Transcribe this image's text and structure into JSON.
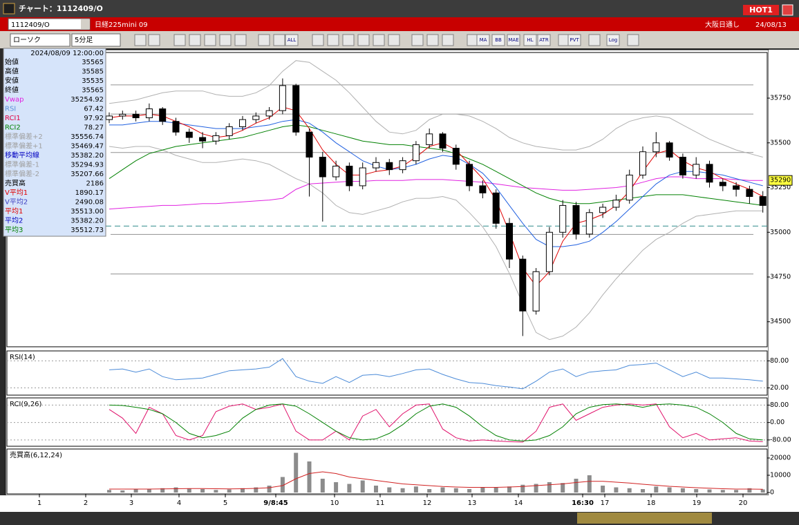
{
  "window": {
    "title": "チャート：1112409/O",
    "badge": "HOT1"
  },
  "header": {
    "symbol": "1112409/O",
    "name": "日経225mini 09",
    "session": "大阪日通し",
    "date": "24/08/13"
  },
  "toolbar": {
    "chart_style": "ローソク",
    "interval": "5分足",
    "buttons": [
      "ALL",
      "MA",
      "BB",
      "MAE",
      "HL",
      "ATR",
      "PVT",
      "Log"
    ]
  },
  "info_panel": {
    "timestamp": "2024/08/09 12:00:00",
    "rows": [
      {
        "label": "始値",
        "value": "35565",
        "color": "#000000"
      },
      {
        "label": "高値",
        "value": "35585",
        "color": "#000000"
      },
      {
        "label": "安値",
        "value": "35535",
        "color": "#000000"
      },
      {
        "label": "終値",
        "value": "35565",
        "color": "#000000"
      },
      {
        "label": "Vwap",
        "value": "35254.92",
        "color": "#e020e0"
      },
      {
        "label": "RSI",
        "value": "67.42",
        "color": "#5a90d8"
      },
      {
        "label": "RCI1",
        "value": "97.92",
        "color": "#e00040"
      },
      {
        "label": "RCI2",
        "value": "78.27",
        "color": "#008000"
      },
      {
        "label": "標準偏差+2",
        "value": "35556.74",
        "color": "#a0a0a0"
      },
      {
        "label": "標準偏差+1",
        "value": "35469.47",
        "color": "#a0a0a0"
      },
      {
        "label": "移動平均線",
        "value": "35382.20",
        "color": "#0000c0"
      },
      {
        "label": "標準偏差-1",
        "value": "35294.93",
        "color": "#a0a0a0"
      },
      {
        "label": "標準偏差-2",
        "value": "35207.66",
        "color": "#a0a0a0"
      },
      {
        "label": "売買高",
        "value": "2186",
        "color": "#000000"
      },
      {
        "label": "V平均1",
        "value": "1890.17",
        "color": "#e00000"
      },
      {
        "label": "V平均2",
        "value": "2490.08",
        "color": "#4040c0"
      },
      {
        "label": "平均1",
        "value": "35513.00",
        "color": "#e00000"
      },
      {
        "label": "平均2",
        "value": "35382.20",
        "color": "#0000c0"
      },
      {
        "label": "平均3",
        "value": "35512.73",
        "color": "#008000"
      }
    ]
  },
  "time_axis": {
    "labels": [
      "1",
      "2",
      "3",
      "4",
      "5",
      "9/8:45",
      "10",
      "11",
      "12",
      "13",
      "14",
      "16:30",
      "17",
      "18",
      "19",
      "20"
    ]
  },
  "chart_data": [
    {
      "type": "candlestick",
      "ylim": [
        34360,
        36005
      ],
      "yticks": [
        34500,
        34750,
        35000,
        35250,
        35500,
        35750
      ],
      "up_color": "#ffffff",
      "down_color": "#000000",
      "hlines": [
        35824,
        35661,
        35446,
        34988,
        34767
      ],
      "reference_line": 35035,
      "last_price": 35290,
      "open": [
        35630,
        35650,
        35660,
        35640,
        35690,
        35620,
        35560,
        35530,
        35510,
        35540,
        35590,
        35630,
        35650,
        35680,
        35820,
        35560,
        35420,
        35310,
        35370,
        35260,
        35360,
        35390,
        35350,
        35400,
        35490,
        35550,
        35470,
        35380,
        35260,
        35220,
        35050,
        34850,
        34560,
        34780,
        35000,
        35150,
        34990,
        35110,
        35140,
        35180,
        35320,
        35450,
        35500,
        35420,
        35320,
        35380,
        35280,
        35260,
        35240,
        35200
      ],
      "high": [
        35670,
        35680,
        35680,
        35720,
        35700,
        35640,
        35580,
        35560,
        35560,
        35610,
        35650,
        35670,
        35700,
        35860,
        35830,
        35580,
        35450,
        35400,
        35390,
        35390,
        35420,
        35410,
        35420,
        35510,
        35580,
        35560,
        35490,
        35400,
        35290,
        35240,
        35080,
        34870,
        34800,
        35030,
        35180,
        35170,
        35130,
        35160,
        35210,
        35350,
        35480,
        35560,
        35510,
        35440,
        35420,
        35400,
        35300,
        35280,
        35260,
        35230
      ],
      "low": [
        35610,
        35630,
        35620,
        35620,
        35600,
        35540,
        35500,
        35470,
        35490,
        35520,
        35570,
        35610,
        35630,
        35660,
        35540,
        35200,
        35060,
        35290,
        35230,
        35240,
        35340,
        35320,
        35330,
        35380,
        35470,
        35450,
        35350,
        35230,
        35190,
        35020,
        34800,
        34420,
        34540,
        34760,
        34970,
        34960,
        34970,
        35080,
        35120,
        35160,
        35300,
        35420,
        35400,
        35300,
        35300,
        35250,
        35230,
        35200,
        35160,
        35110
      ],
      "close": [
        35650,
        35660,
        35640,
        35690,
        35620,
        35560,
        35530,
        35510,
        35540,
        35590,
        35630,
        35650,
        35680,
        35820,
        35560,
        35420,
        35310,
        35370,
        35260,
        35360,
        35390,
        35350,
        35400,
        35490,
        35550,
        35470,
        35380,
        35260,
        35220,
        35050,
        34850,
        34560,
        34780,
        35000,
        35150,
        34990,
        35110,
        35140,
        35180,
        35320,
        35450,
        35500,
        35420,
        35320,
        35380,
        35280,
        35260,
        35240,
        35200,
        35150
      ],
      "series": [
        {
          "color": "#b0b0b0",
          "values": [
            35720,
            35730,
            35740,
            35760,
            35780,
            35790,
            35790,
            35790,
            35770,
            35760,
            35760,
            35780,
            35820,
            35900,
            35960,
            35950,
            35900,
            35850,
            35780,
            35700,
            35620,
            35560,
            35550,
            35570,
            35630,
            35660,
            35660,
            35650,
            35620,
            35580,
            35530,
            35500,
            35480,
            35470,
            35460,
            35460,
            35480,
            35520,
            35580,
            35620,
            35640,
            35650,
            35640,
            35600,
            35560,
            35520,
            35490,
            35460,
            35440,
            35420
          ]
        },
        {
          "color": "#b0b0b0",
          "values": [
            35480,
            35470,
            35480,
            35480,
            35460,
            35430,
            35410,
            35390,
            35390,
            35400,
            35410,
            35400,
            35380,
            35340,
            35300,
            35270,
            35220,
            35150,
            35110,
            35100,
            35120,
            35140,
            35170,
            35190,
            35190,
            35200,
            35180,
            35110,
            35030,
            34920,
            34770,
            34600,
            34440,
            34400,
            34420,
            34470,
            34550,
            34650,
            34740,
            34820,
            34900,
            34960,
            35000,
            35050,
            35090,
            35100,
            35110,
            35120,
            35120,
            35120
          ]
        },
        {
          "color": "#e020e0",
          "values": [
            35130,
            35135,
            35140,
            35145,
            35150,
            35150,
            35155,
            35160,
            35160,
            35165,
            35170,
            35175,
            35180,
            35190,
            35240,
            35270,
            35275,
            35280,
            35285,
            35285,
            35290,
            35290,
            35290,
            35295,
            35295,
            35295,
            35290,
            35285,
            35280,
            35270,
            35260,
            35250,
            35245,
            35240,
            35235,
            35235,
            35240,
            35245,
            35250,
            35260,
            35280,
            35300,
            35310,
            35310,
            35300,
            35300,
            35300,
            35295,
            35290,
            35290
          ]
        },
        {
          "color": "#008000",
          "values": [
            35300,
            35350,
            35400,
            35440,
            35460,
            35480,
            35490,
            35500,
            35510,
            35520,
            35530,
            35550,
            35570,
            35590,
            35600,
            35590,
            35570,
            35550,
            35530,
            35510,
            35500,
            35490,
            35490,
            35480,
            35470,
            35460,
            35440,
            35410,
            35380,
            35340,
            35300,
            35260,
            35220,
            35190,
            35170,
            35160,
            35160,
            35170,
            35180,
            35190,
            35200,
            35210,
            35210,
            35210,
            35200,
            35190,
            35180,
            35170,
            35160,
            35150
          ]
        },
        {
          "color": "#2060e0",
          "values": [
            35600,
            35600,
            35610,
            35620,
            35620,
            35610,
            35600,
            35590,
            35580,
            35580,
            35580,
            35590,
            35600,
            35620,
            35630,
            35610,
            35560,
            35500,
            35450,
            35400,
            35370,
            35350,
            35360,
            35380,
            35410,
            35430,
            35420,
            35380,
            35330,
            35250,
            35150,
            35050,
            34960,
            34920,
            34920,
            34930,
            34950,
            35000,
            35060,
            35130,
            35200,
            35270,
            35320,
            35340,
            35340,
            35330,
            35320,
            35300,
            35280,
            35260
          ]
        },
        {
          "color": "#e00000",
          "values": [
            35640,
            35650,
            35650,
            35660,
            35650,
            35620,
            35590,
            35550,
            35530,
            35540,
            35570,
            35610,
            35640,
            35700,
            35680,
            35580,
            35460,
            35380,
            35320,
            35320,
            35340,
            35350,
            35370,
            35420,
            35480,
            35500,
            35460,
            35380,
            35300,
            35180,
            35000,
            34800,
            34700,
            34780,
            34950,
            35050,
            35070,
            35100,
            35150,
            35230,
            35340,
            35440,
            35460,
            35400,
            35360,
            35340,
            35300,
            35270,
            35240,
            35200
          ]
        }
      ]
    },
    {
      "type": "line",
      "title": "RSI(14)",
      "ylim": [
        4,
        102
      ],
      "grid": true,
      "yticks": [
        {
          "value": 80,
          "label": "80.00"
        },
        {
          "value": 20,
          "label": "20.00"
        }
      ],
      "series": [
        {
          "color": "#4a8ad8",
          "values": [
            60,
            62,
            55,
            62,
            45,
            38,
            40,
            42,
            50,
            58,
            60,
            62,
            66,
            85,
            45,
            35,
            30,
            45,
            32,
            48,
            50,
            45,
            52,
            60,
            62,
            50,
            40,
            32,
            30,
            25,
            22,
            18,
            35,
            55,
            62,
            45,
            55,
            58,
            60,
            70,
            72,
            75,
            60,
            45,
            55,
            42,
            42,
            40,
            38,
            35
          ]
        }
      ]
    },
    {
      "type": "line",
      "title": "RCI(9,26)",
      "ylim": [
        -109,
        113
      ],
      "grid": true,
      "yticks": [
        {
          "value": 80,
          "label": "80.00"
        },
        {
          "value": 0,
          "label": "0.00"
        },
        {
          "value": -80,
          "label": "-80.00"
        }
      ],
      "series": [
        {
          "color": "#e0106a",
          "values": [
            60,
            20,
            -50,
            70,
            40,
            -60,
            -80,
            -60,
            50,
            75,
            85,
            60,
            70,
            85,
            -40,
            -80,
            -80,
            -40,
            -80,
            30,
            60,
            -20,
            40,
            80,
            85,
            -30,
            -70,
            -85,
            -80,
            -85,
            -88,
            -90,
            -40,
            70,
            85,
            10,
            40,
            70,
            80,
            85,
            80,
            85,
            -20,
            -70,
            -50,
            -80,
            -75,
            -70,
            -85,
            -88
          ]
        },
        {
          "color": "#008000",
          "values": [
            80,
            78,
            70,
            60,
            40,
            0,
            -50,
            -70,
            -60,
            -40,
            20,
            60,
            80,
            85,
            75,
            40,
            0,
            -40,
            -70,
            -80,
            -75,
            -50,
            -10,
            40,
            75,
            85,
            70,
            30,
            -20,
            -60,
            -80,
            -85,
            -80,
            -60,
            -20,
            40,
            70,
            82,
            85,
            80,
            70,
            82,
            85,
            80,
            70,
            40,
            0,
            -50,
            -75,
            -80
          ]
        }
      ]
    },
    {
      "type": "bar",
      "title": "売買高(6,12,24)",
      "ylim": [
        -800,
        25200
      ],
      "yticks": [
        0,
        10000,
        20000
      ],
      "color": "#8c8c8c",
      "values": [
        1500,
        1200,
        2000,
        1800,
        2500,
        3000,
        2200,
        2000,
        1500,
        1800,
        2500,
        3000,
        4000,
        9000,
        23000,
        18000,
        8000,
        6000,
        5000,
        7000,
        4000,
        3000,
        2500,
        3500,
        2000,
        3000,
        2500,
        2000,
        2800,
        3000,
        3500,
        4500,
        5000,
        6000,
        5500,
        8000,
        10000,
        4000,
        3000,
        2500,
        2000,
        3500,
        3000,
        2500,
        2000,
        1800,
        1500,
        1500,
        2500,
        1800
      ],
      "series": [
        {
          "color": "#d02020",
          "values": [
            2000,
            2000,
            2000,
            2000,
            2100,
            2200,
            2300,
            2300,
            2200,
            2100,
            2200,
            2400,
            2800,
            4000,
            8000,
            11000,
            12000,
            11000,
            9000,
            8000,
            7000,
            6000,
            5000,
            4500,
            4000,
            3500,
            3200,
            3000,
            3000,
            3000,
            3200,
            3500,
            4000,
            4500,
            5000,
            5800,
            6500,
            6500,
            6000,
            5500,
            4800,
            4200,
            3600,
            3200,
            2800,
            2500,
            2200,
            2000,
            2000,
            1900
          ]
        }
      ]
    }
  ]
}
